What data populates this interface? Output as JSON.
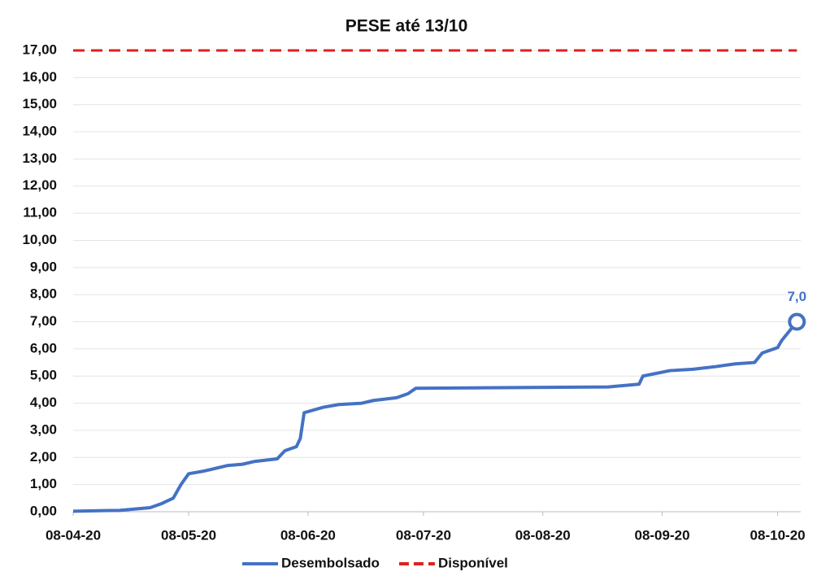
{
  "chart_data": {
    "type": "line",
    "title": "PESE até 13/10",
    "x": [
      "2020-04-08",
      "2020-04-20",
      "2020-04-28",
      "2020-05-01",
      "2020-05-04",
      "2020-05-06",
      "2020-05-08",
      "2020-05-12",
      "2020-05-18",
      "2020-05-22",
      "2020-05-25",
      "2020-05-31",
      "2020-06-02",
      "2020-06-05",
      "2020-06-06",
      "2020-06-07",
      "2020-06-12",
      "2020-06-16",
      "2020-06-22",
      "2020-06-25",
      "2020-07-01",
      "2020-07-04",
      "2020-07-06",
      "2020-08-25",
      "2020-09-02",
      "2020-09-03",
      "2020-09-10",
      "2020-09-16",
      "2020-09-22",
      "2020-09-27",
      "2020-10-02",
      "2020-10-04",
      "2020-10-08",
      "2020-10-09",
      "2020-10-13"
    ],
    "series": [
      {
        "name": "Desembolsado",
        "color": "#4472c4",
        "dashed": false,
        "values": [
          0.02,
          0.05,
          0.15,
          0.3,
          0.5,
          1.0,
          1.4,
          1.5,
          1.7,
          1.75,
          1.85,
          1.95,
          2.25,
          2.4,
          2.7,
          3.65,
          3.85,
          3.95,
          4.0,
          4.1,
          4.2,
          4.35,
          4.55,
          4.6,
          4.7,
          5.0,
          5.2,
          5.25,
          5.35,
          5.45,
          5.5,
          5.85,
          6.05,
          6.3,
          7.0
        ],
        "value_labels": [
          null,
          null,
          null,
          null,
          null,
          null,
          null,
          null,
          null,
          null,
          null,
          null,
          null,
          null,
          null,
          null,
          null,
          null,
          null,
          null,
          null,
          null,
          null,
          null,
          null,
          null,
          null,
          null,
          null,
          null,
          null,
          null,
          null,
          null,
          "7,0"
        ]
      },
      {
        "name": "Disponível",
        "color": "#e02020",
        "dashed": true,
        "values": [
          17,
          17,
          17,
          17,
          17,
          17,
          17,
          17,
          17,
          17,
          17,
          17,
          17,
          17,
          17,
          17,
          17,
          17,
          17,
          17,
          17,
          17,
          17,
          17,
          17,
          17,
          17,
          17,
          17,
          17,
          17,
          17,
          17,
          17,
          17
        ]
      }
    ],
    "xlim": [
      "2020-04-08",
      "2020-10-14"
    ],
    "xticks": [
      {
        "value": "2020-04-08",
        "label": "08-04-20"
      },
      {
        "value": "2020-05-08",
        "label": "08-05-20"
      },
      {
        "value": "2020-06-08",
        "label": "08-06-20"
      },
      {
        "value": "2020-07-08",
        "label": "08-07-20"
      },
      {
        "value": "2020-08-08",
        "label": "08-08-20"
      },
      {
        "value": "2020-09-08",
        "label": "08-09-20"
      },
      {
        "value": "2020-10-08",
        "label": "08-10-20"
      }
    ],
    "ylim": [
      0,
      17
    ],
    "yticks": [
      {
        "value": 0,
        "label": "0,00"
      },
      {
        "value": 1,
        "label": "1,00"
      },
      {
        "value": 2,
        "label": "2,00"
      },
      {
        "value": 3,
        "label": "3,00"
      },
      {
        "value": 4,
        "label": "4,00"
      },
      {
        "value": 5,
        "label": "5,00"
      },
      {
        "value": 6,
        "label": "6,00"
      },
      {
        "value": 7,
        "label": "7,00"
      },
      {
        "value": 8,
        "label": "8,00"
      },
      {
        "value": 9,
        "label": "9,00"
      },
      {
        "value": 10,
        "label": "10,00"
      },
      {
        "value": 11,
        "label": "11,00"
      },
      {
        "value": 12,
        "label": "12,00"
      },
      {
        "value": 13,
        "label": "13,00"
      },
      {
        "value": 14,
        "label": "14,00"
      },
      {
        "value": 15,
        "label": "15,00"
      },
      {
        "value": 16,
        "label": "16,00"
      },
      {
        "value": 17,
        "label": "17,00"
      }
    ],
    "grid": true,
    "legend": "bottom"
  }
}
